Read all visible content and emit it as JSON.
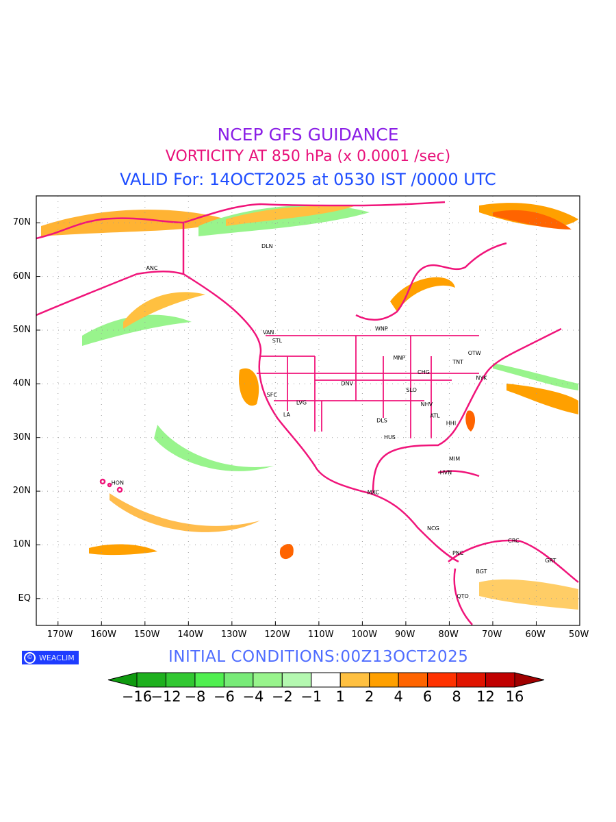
{
  "header": {
    "title": "NCEP GFS GUIDANCE",
    "subtitle": "VORTICITY AT 850 hPa (x 0.0001 /sec)",
    "valid": "VALID For: 14OCT2025 at 0530 IST /0000 UTC"
  },
  "colors": {
    "title": "#8a1ee6",
    "subtitle": "#e8107a",
    "valid": "#1e4dff",
    "initial": "#4f6dff",
    "coast": "#f0147a",
    "logo_bg": "#1e3cff"
  },
  "map": {
    "lon_range": [
      -175,
      -50
    ],
    "lat_range": [
      -5,
      75
    ],
    "lon_ticks": [
      {
        "v": -170,
        "label": "170W"
      },
      {
        "v": -160,
        "label": "160W"
      },
      {
        "v": -150,
        "label": "150W"
      },
      {
        "v": -140,
        "label": "140W"
      },
      {
        "v": -130,
        "label": "130W"
      },
      {
        "v": -120,
        "label": "120W"
      },
      {
        "v": -110,
        "label": "110W"
      },
      {
        "v": -100,
        "label": "100W"
      },
      {
        "v": -90,
        "label": "90W"
      },
      {
        "v": -80,
        "label": "80W"
      },
      {
        "v": -70,
        "label": "70W"
      },
      {
        "v": -60,
        "label": "60W"
      },
      {
        "v": -50,
        "label": "50W"
      }
    ],
    "lat_ticks": [
      {
        "v": 0,
        "label": "EQ"
      },
      {
        "v": 10,
        "label": "10N"
      },
      {
        "v": 20,
        "label": "20N"
      },
      {
        "v": 30,
        "label": "30N"
      },
      {
        "v": 40,
        "label": "40N"
      },
      {
        "v": 50,
        "label": "50N"
      },
      {
        "v": 60,
        "label": "60N"
      },
      {
        "v": 70,
        "label": "70N"
      }
    ],
    "cities": [
      {
        "name": "DLN",
        "lon": -121.9,
        "lat": 65.7
      },
      {
        "name": "ANC",
        "lon": -148.4,
        "lat": 61.6
      },
      {
        "name": "VAN",
        "lon": -121.6,
        "lat": 49.6
      },
      {
        "name": "STL",
        "lon": -119.6,
        "lat": 48.1
      },
      {
        "name": "WNP",
        "lon": -95.6,
        "lat": 50.3
      },
      {
        "name": "MNP",
        "lon": -91.5,
        "lat": 44.9
      },
      {
        "name": "OTW",
        "lon": -74.2,
        "lat": 45.8
      },
      {
        "name": "TNT",
        "lon": -78.0,
        "lat": 44.1
      },
      {
        "name": "CHG",
        "lon": -85.9,
        "lat": 42.2
      },
      {
        "name": "NYK",
        "lon": -72.6,
        "lat": 41.1
      },
      {
        "name": "DNV",
        "lon": -103.5,
        "lat": 40.1
      },
      {
        "name": "SFC",
        "lon": -120.8,
        "lat": 38.0
      },
      {
        "name": "LVG",
        "lon": -114.0,
        "lat": 36.5
      },
      {
        "name": "LA",
        "lon": -117.4,
        "lat": 34.3
      },
      {
        "name": "SLO",
        "lon": -88.7,
        "lat": 38.9
      },
      {
        "name": "NHV",
        "lon": -85.2,
        "lat": 36.2
      },
      {
        "name": "ATL",
        "lon": -83.3,
        "lat": 34.1
      },
      {
        "name": "DLS",
        "lon": -95.5,
        "lat": 33.2
      },
      {
        "name": "HHI",
        "lon": -79.6,
        "lat": 32.7
      },
      {
        "name": "HUS",
        "lon": -93.7,
        "lat": 30.1
      },
      {
        "name": "MIM",
        "lon": -78.8,
        "lat": 26.1
      },
      {
        "name": "HVN",
        "lon": -80.8,
        "lat": 23.5
      },
      {
        "name": "HON",
        "lon": -156.3,
        "lat": 21.6
      },
      {
        "name": "MXC",
        "lon": -97.5,
        "lat": 19.8
      },
      {
        "name": "NCG",
        "lon": -83.7,
        "lat": 13.1
      },
      {
        "name": "PNC",
        "lon": -78.0,
        "lat": 8.5
      },
      {
        "name": "BGT",
        "lon": -72.6,
        "lat": 5.1
      },
      {
        "name": "CRC",
        "lon": -65.2,
        "lat": 10.8
      },
      {
        "name": "GRT",
        "lon": -56.7,
        "lat": 7.1
      },
      {
        "name": "QTO",
        "lon": -76.9,
        "lat": 0.5
      }
    ]
  },
  "logo": {
    "symbol": "©",
    "text": "WEACLIM"
  },
  "footer": {
    "initial": "INITIAL  CONDITIONS:00Z13OCT2025"
  },
  "colorbar": {
    "low_color": "#0f9a0f",
    "high_color": "#a00000",
    "colors": [
      "#1eb01e",
      "#32c832",
      "#50ef50",
      "#78eb78",
      "#98f48c",
      "#b4f8b0",
      "#ffffff",
      "#ffc040",
      "#ffa000",
      "#ff6400",
      "#ff3200",
      "#e01400",
      "#c00000"
    ],
    "labels": [
      "−16",
      "−12",
      "−8",
      "−6",
      "−4",
      "−2",
      "−1",
      "1",
      "2",
      "4",
      "6",
      "8",
      "12",
      "16"
    ]
  }
}
